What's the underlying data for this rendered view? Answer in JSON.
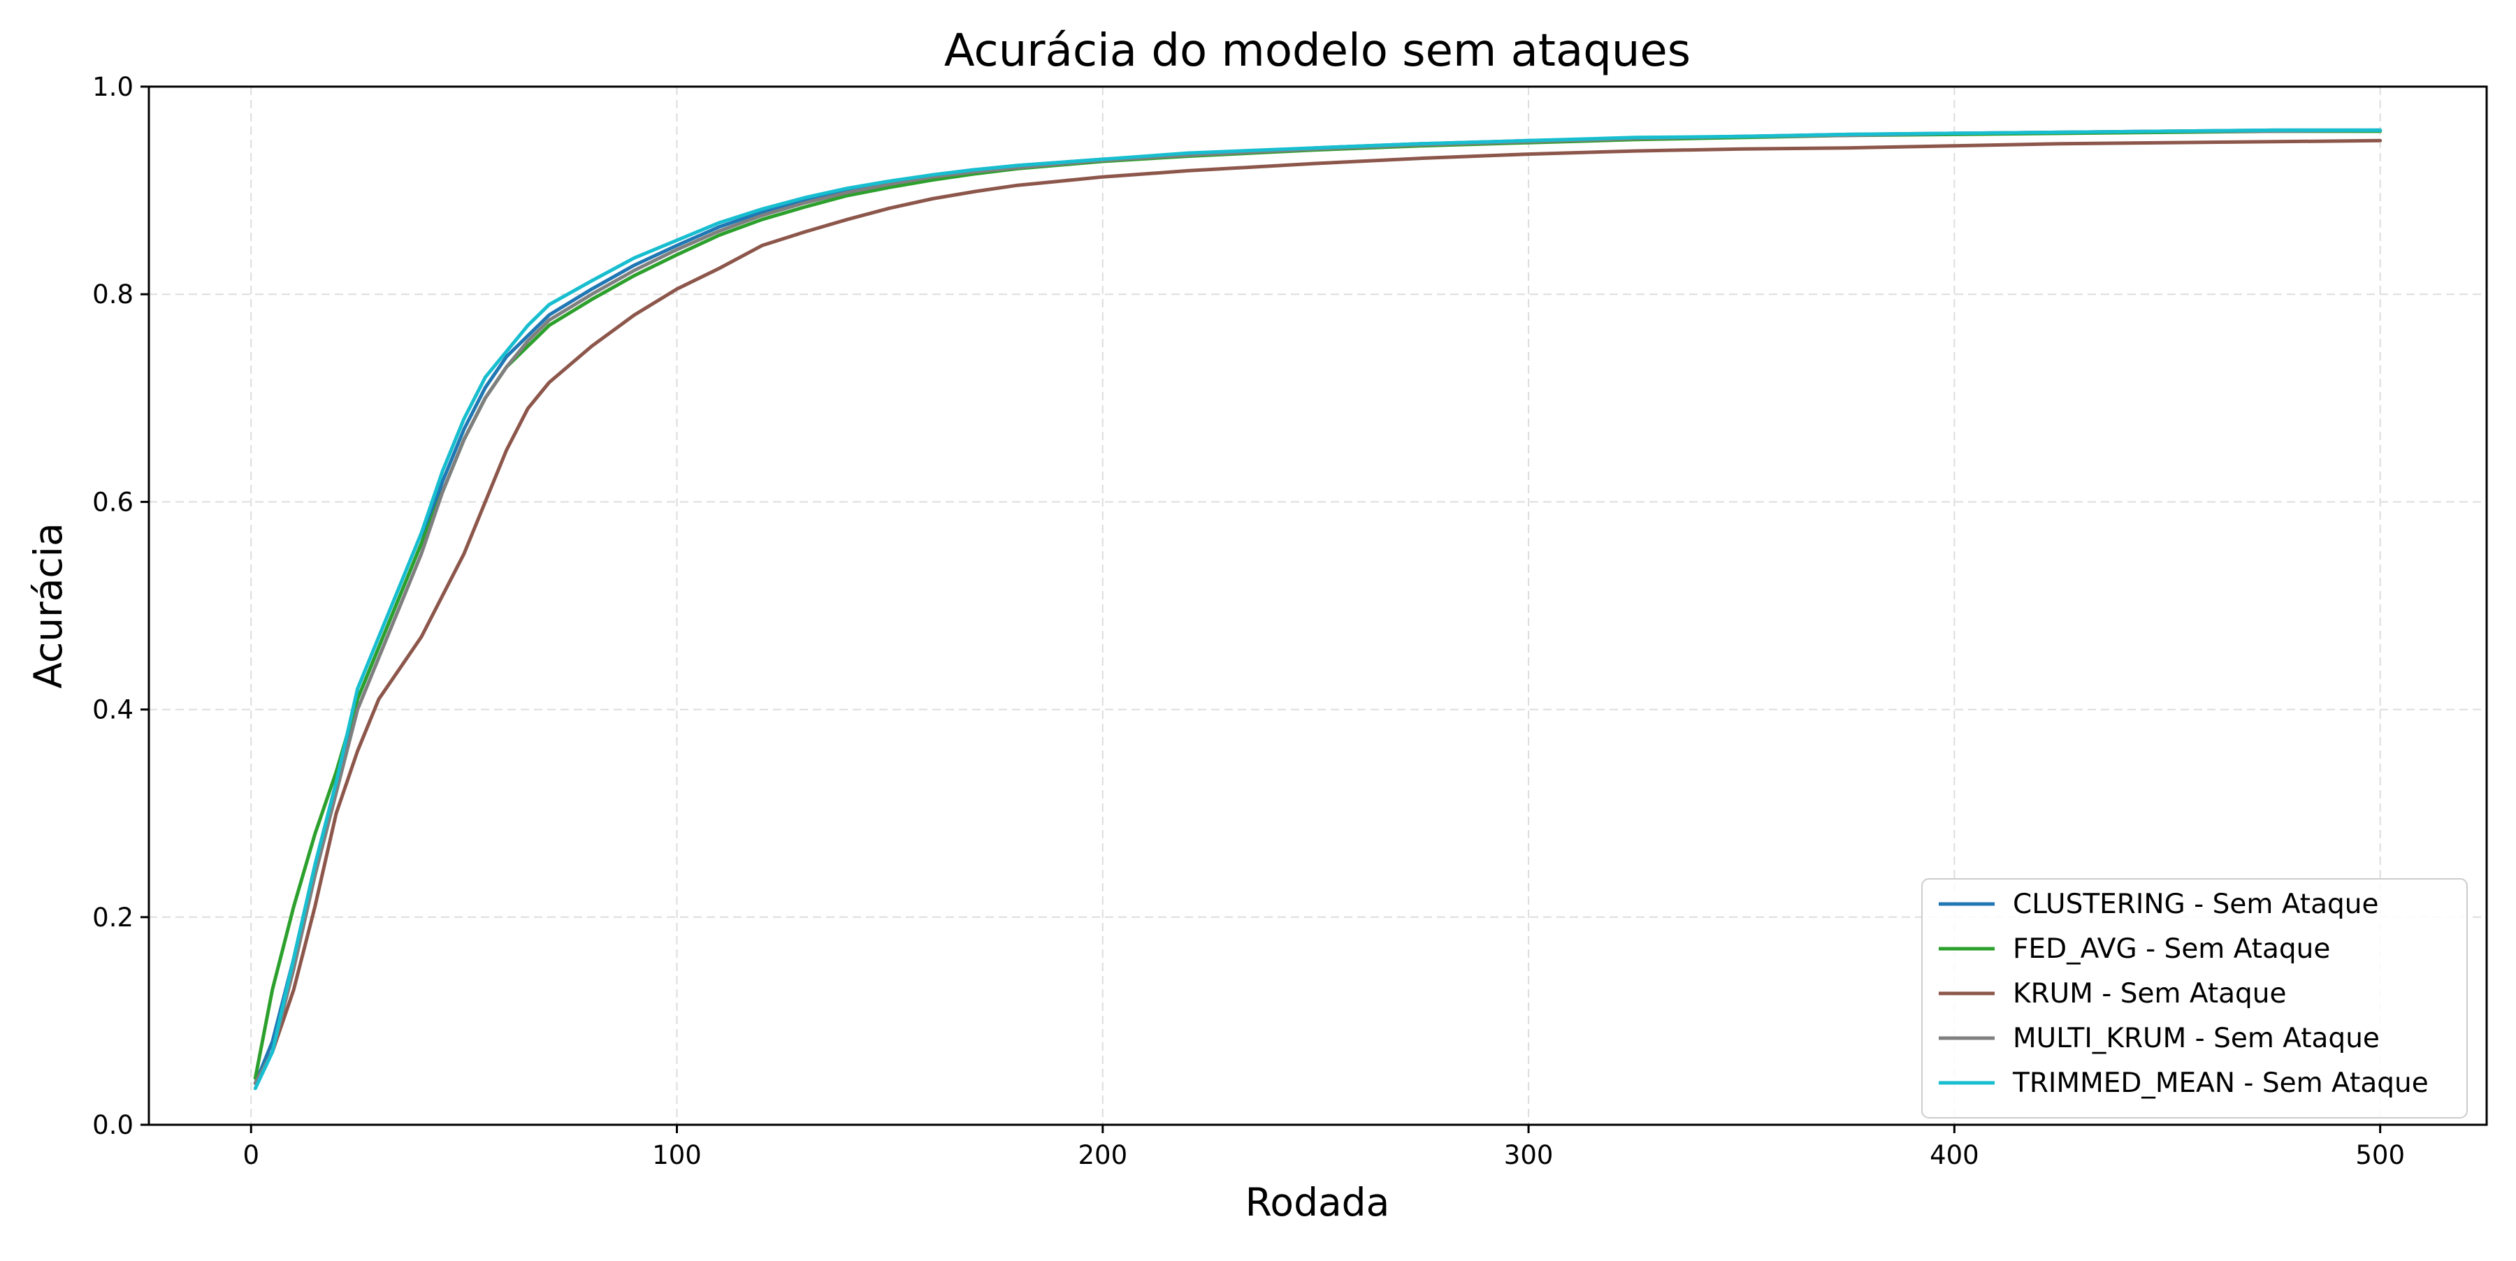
{
  "chart_data": {
    "type": "line",
    "title": "Acurácia do modelo sem ataques",
    "xlabel": "Rodada",
    "ylabel": "Acurácia",
    "xlim": [
      -24,
      525
    ],
    "ylim": [
      0.0,
      1.0
    ],
    "xticks": [
      0,
      100,
      200,
      300,
      400,
      500
    ],
    "xtick_labels": [
      "0",
      "100",
      "200",
      "300",
      "400",
      "500"
    ],
    "yticks": [
      0.0,
      0.2,
      0.4,
      0.6,
      0.8,
      1.0
    ],
    "ytick_labels": [
      "0.0",
      "0.2",
      "0.4",
      "0.6",
      "0.8",
      "1.0"
    ],
    "grid": true,
    "legend_position": "bottom-right",
    "series": [
      {
        "name": "CLUSTERING - Sem Ataque",
        "color": "#1f77b4",
        "x": [
          1,
          5,
          10,
          15,
          20,
          25,
          30,
          35,
          40,
          45,
          50,
          55,
          60,
          65,
          70,
          80,
          90,
          100,
          110,
          120,
          130,
          140,
          150,
          160,
          170,
          180,
          200,
          220,
          250,
          275,
          300,
          325,
          350,
          375,
          400,
          425,
          450,
          475,
          500
        ],
        "y": [
          0.04,
          0.08,
          0.16,
          0.25,
          0.33,
          0.41,
          0.46,
          0.51,
          0.56,
          0.62,
          0.67,
          0.71,
          0.74,
          0.76,
          0.78,
          0.805,
          0.828,
          0.847,
          0.865,
          0.879,
          0.891,
          0.9,
          0.908,
          0.915,
          0.92,
          0.924,
          0.93,
          0.935,
          0.941,
          0.945,
          0.948,
          0.95,
          0.952,
          0.954,
          0.955,
          0.956,
          0.957,
          0.958,
          0.958
        ]
      },
      {
        "name": "FED_AVG - Sem Ataque",
        "color": "#2ca02c",
        "x": [
          1,
          5,
          10,
          15,
          20,
          25,
          30,
          35,
          40,
          45,
          50,
          55,
          60,
          65,
          70,
          80,
          90,
          100,
          110,
          120,
          130,
          140,
          150,
          160,
          170,
          180,
          200,
          220,
          250,
          275,
          300,
          325,
          350,
          375,
          400,
          425,
          450,
          475,
          500
        ],
        "y": [
          0.045,
          0.13,
          0.21,
          0.28,
          0.34,
          0.41,
          0.46,
          0.51,
          0.56,
          0.61,
          0.66,
          0.7,
          0.73,
          0.75,
          0.77,
          0.795,
          0.818,
          0.838,
          0.857,
          0.872,
          0.884,
          0.895,
          0.903,
          0.91,
          0.916,
          0.921,
          0.928,
          0.933,
          0.939,
          0.943,
          0.946,
          0.949,
          0.951,
          0.953,
          0.954,
          0.955,
          0.956,
          0.957,
          0.957
        ]
      },
      {
        "name": "KRUM - Sem Ataque",
        "color": "#8c564b",
        "x": [
          1,
          5,
          10,
          15,
          20,
          25,
          30,
          35,
          40,
          45,
          50,
          55,
          60,
          65,
          70,
          80,
          90,
          100,
          110,
          120,
          130,
          140,
          150,
          160,
          170,
          180,
          200,
          220,
          250,
          275,
          300,
          325,
          350,
          375,
          400,
          425,
          450,
          475,
          500
        ],
        "y": [
          0.04,
          0.07,
          0.13,
          0.21,
          0.3,
          0.36,
          0.41,
          0.44,
          0.47,
          0.51,
          0.55,
          0.6,
          0.65,
          0.69,
          0.715,
          0.75,
          0.78,
          0.805,
          0.825,
          0.847,
          0.86,
          0.872,
          0.883,
          0.892,
          0.899,
          0.905,
          0.913,
          0.919,
          0.926,
          0.931,
          0.935,
          0.938,
          0.94,
          0.941,
          0.943,
          0.945,
          0.946,
          0.947,
          0.948
        ]
      },
      {
        "name": "MULTI_KRUM - Sem Ataque",
        "color": "#7f7f7f",
        "x": [
          1,
          5,
          10,
          15,
          20,
          25,
          30,
          35,
          40,
          45,
          50,
          55,
          60,
          65,
          70,
          80,
          90,
          100,
          110,
          120,
          130,
          140,
          150,
          160,
          170,
          180,
          200,
          220,
          250,
          275,
          300,
          325,
          350,
          375,
          400,
          425,
          450,
          475,
          500
        ],
        "y": [
          0.04,
          0.07,
          0.15,
          0.24,
          0.32,
          0.4,
          0.45,
          0.5,
          0.55,
          0.61,
          0.66,
          0.7,
          0.73,
          0.755,
          0.775,
          0.8,
          0.823,
          0.843,
          0.861,
          0.876,
          0.888,
          0.898,
          0.906,
          0.913,
          0.918,
          0.922,
          0.929,
          0.934,
          0.94,
          0.944,
          0.947,
          0.95,
          0.952,
          0.953,
          0.955,
          0.956,
          0.957,
          0.957,
          0.958
        ]
      },
      {
        "name": "TRIMMED_MEAN - Sem Ataque",
        "color": "#17becf",
        "x": [
          1,
          5,
          10,
          15,
          20,
          25,
          30,
          35,
          40,
          45,
          50,
          55,
          60,
          65,
          70,
          80,
          90,
          100,
          110,
          120,
          130,
          140,
          150,
          160,
          170,
          180,
          200,
          220,
          250,
          275,
          300,
          325,
          350,
          375,
          400,
          425,
          450,
          475,
          500
        ],
        "y": [
          0.035,
          0.07,
          0.16,
          0.25,
          0.33,
          0.42,
          0.47,
          0.52,
          0.57,
          0.63,
          0.68,
          0.72,
          0.745,
          0.77,
          0.79,
          0.813,
          0.835,
          0.852,
          0.869,
          0.882,
          0.893,
          0.902,
          0.909,
          0.915,
          0.92,
          0.924,
          0.93,
          0.936,
          0.941,
          0.945,
          0.948,
          0.951,
          0.952,
          0.954,
          0.955,
          0.956,
          0.957,
          0.958,
          0.958
        ]
      }
    ]
  }
}
